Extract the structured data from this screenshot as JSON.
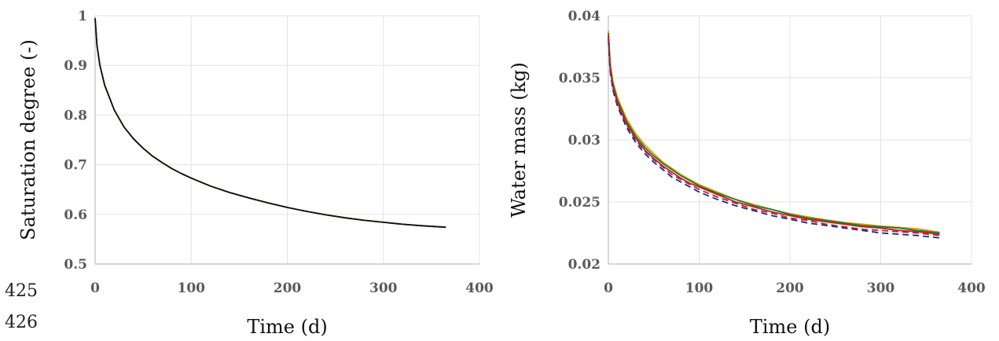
{
  "line_numbers": [
    "425",
    "426"
  ],
  "chart_data": [
    {
      "type": "line",
      "title": "",
      "xlabel": "Time (d)",
      "ylabel": "Saturation degree (-)",
      "xlim": [
        0,
        400
      ],
      "ylim": [
        0.5,
        1
      ],
      "x_ticks": [
        "0",
        "100",
        "200",
        "300",
        "400"
      ],
      "y_ticks": [
        "0.5",
        "0.6",
        "0.7",
        "0.8",
        "0.9",
        "1"
      ],
      "grid": true,
      "legend": "none",
      "series": [
        {
          "color": "#1f7a3a",
          "dash": "",
          "x": [
            0,
            2,
            5,
            10,
            20,
            30,
            40,
            50,
            60,
            70,
            80,
            90,
            100,
            120,
            140,
            160,
            180,
            200,
            220,
            240,
            260,
            280,
            300,
            320,
            340,
            365
          ],
          "y": [
            0.995,
            0.94,
            0.9,
            0.86,
            0.81,
            0.776,
            0.752,
            0.733,
            0.717,
            0.704,
            0.692,
            0.682,
            0.673,
            0.657,
            0.644,
            0.633,
            0.623,
            0.614,
            0.606,
            0.599,
            0.593,
            0.588,
            0.584,
            0.58,
            0.577,
            0.574
          ]
        },
        {
          "color": "#e0a000",
          "dash": "",
          "x": [
            0,
            2,
            5,
            10,
            20,
            30,
            40,
            50,
            60,
            70,
            80,
            90,
            100,
            120,
            140,
            160,
            180,
            200,
            220,
            240,
            260,
            280,
            300,
            320,
            340,
            365
          ],
          "y": [
            0.995,
            0.94,
            0.9,
            0.86,
            0.81,
            0.776,
            0.752,
            0.733,
            0.717,
            0.704,
            0.692,
            0.682,
            0.673,
            0.657,
            0.644,
            0.633,
            0.623,
            0.614,
            0.606,
            0.599,
            0.593,
            0.588,
            0.584,
            0.58,
            0.577,
            0.574
          ]
        },
        {
          "color": "#111111",
          "dash": "",
          "x": [
            0,
            2,
            5,
            10,
            20,
            30,
            40,
            50,
            60,
            70,
            80,
            90,
            100,
            120,
            140,
            160,
            180,
            200,
            220,
            240,
            260,
            280,
            300,
            320,
            340,
            365
          ],
          "y": [
            0.995,
            0.94,
            0.9,
            0.86,
            0.81,
            0.776,
            0.752,
            0.733,
            0.717,
            0.704,
            0.692,
            0.682,
            0.673,
            0.657,
            0.644,
            0.633,
            0.623,
            0.614,
            0.606,
            0.599,
            0.593,
            0.588,
            0.584,
            0.58,
            0.577,
            0.574
          ]
        }
      ]
    },
    {
      "type": "line",
      "title": "",
      "xlabel": "Time (d)",
      "ylabel": "Water mass (kg)",
      "xlim": [
        0,
        400
      ],
      "ylim": [
        0.02,
        0.04
      ],
      "x_ticks": [
        "0",
        "100",
        "200",
        "300",
        "400"
      ],
      "y_ticks": [
        "0.02",
        "0.025",
        "0.03",
        "0.035",
        "0.04"
      ],
      "grid": true,
      "legend": "none",
      "series": [
        {
          "color": "#e0a000",
          "dash": "",
          "x": [
            0,
            2,
            5,
            10,
            20,
            30,
            40,
            50,
            60,
            70,
            80,
            90,
            100,
            120,
            140,
            160,
            180,
            200,
            220,
            240,
            260,
            280,
            300,
            320,
            340,
            365
          ],
          "y": [
            0.0388,
            0.0362,
            0.0347,
            0.0334,
            0.0317,
            0.0305,
            0.0296,
            0.0289,
            0.0282,
            0.0277,
            0.0272,
            0.0268,
            0.0264,
            0.0258,
            0.0252,
            0.0248,
            0.0244,
            0.02405,
            0.0238,
            0.02355,
            0.02335,
            0.0232,
            0.02305,
            0.02295,
            0.02285,
            0.02255
          ]
        },
        {
          "color": "#1f7a3a",
          "dash": "",
          "x": [
            0,
            2,
            5,
            10,
            20,
            30,
            40,
            50,
            60,
            70,
            80,
            90,
            100,
            120,
            140,
            160,
            180,
            200,
            220,
            240,
            260,
            280,
            300,
            320,
            340,
            365
          ],
          "y": [
            0.0386,
            0.036,
            0.0345,
            0.0332,
            0.0315,
            0.0303,
            0.0294,
            0.0287,
            0.0281,
            0.0276,
            0.0271,
            0.0267,
            0.0263,
            0.0257,
            0.0252,
            0.0247,
            0.0244,
            0.024,
            0.0237,
            0.0235,
            0.0233,
            0.0231,
            0.023,
            0.0229,
            0.0227,
            0.0225
          ]
        },
        {
          "color": "#c0202a",
          "dash": "",
          "x": [
            0,
            2,
            5,
            10,
            20,
            30,
            40,
            50,
            60,
            70,
            80,
            90,
            100,
            120,
            140,
            160,
            180,
            200,
            220,
            240,
            260,
            280,
            300,
            320,
            340,
            365
          ],
          "y": [
            0.0384,
            0.0358,
            0.0343,
            0.033,
            0.0313,
            0.0301,
            0.0292,
            0.0285,
            0.0279,
            0.0274,
            0.0269,
            0.0265,
            0.0262,
            0.0256,
            0.025,
            0.0246,
            0.0242,
            0.0239,
            0.0236,
            0.0234,
            0.0232,
            0.023,
            0.0229,
            0.0227,
            0.0226,
            0.0224
          ]
        },
        {
          "color": "#1a2a8a",
          "dash": "8,5",
          "x": [
            0,
            2,
            5,
            10,
            20,
            30,
            40,
            50,
            60,
            70,
            80,
            90,
            100,
            120,
            140,
            160,
            180,
            200,
            220,
            240,
            260,
            280,
            300,
            320,
            340,
            365
          ],
          "y": [
            0.0381,
            0.0355,
            0.034,
            0.0327,
            0.031,
            0.0298,
            0.0289,
            0.0282,
            0.0276,
            0.027,
            0.0266,
            0.0262,
            0.0258,
            0.0252,
            0.0247,
            0.0243,
            0.0239,
            0.0236,
            0.0233,
            0.0231,
            0.0229,
            0.0227,
            0.0225,
            0.0224,
            0.0223,
            0.0221
          ]
        },
        {
          "color": "#c0202a",
          "dash": "8,5",
          "x": [
            0,
            2,
            5,
            10,
            20,
            30,
            40,
            50,
            60,
            70,
            80,
            90,
            100,
            120,
            140,
            160,
            180,
            200,
            220,
            240,
            260,
            280,
            300,
            320,
            340,
            365
          ],
          "y": [
            0.0383,
            0.0357,
            0.0342,
            0.0329,
            0.0312,
            0.03,
            0.0291,
            0.0284,
            0.0278,
            0.0272,
            0.0268,
            0.0264,
            0.026,
            0.0254,
            0.0249,
            0.0244,
            0.0241,
            0.0237,
            0.0235,
            0.0232,
            0.023,
            0.0228,
            0.0227,
            0.0226,
            0.0225,
            0.0223
          ]
        }
      ]
    }
  ]
}
